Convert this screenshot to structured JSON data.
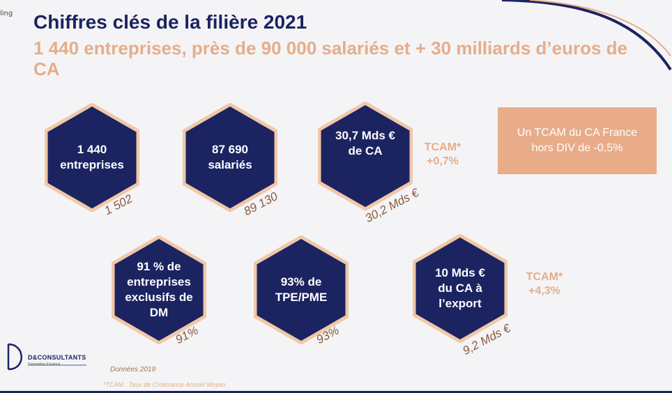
{
  "corner_tag": "ling",
  "slide": {
    "title": "Chiffres clés de la filière 2021",
    "subtitle": "1 440 entreprises, près de 90 000 salariés et + 30 milliards d’euros de CA"
  },
  "hexagons": [
    {
      "label": "1 440\nentreprises",
      "previous": "1 502"
    },
    {
      "label": "87 690\nsalariés",
      "previous": "89 130"
    },
    {
      "label": "30,7 Mds €\nde CA",
      "previous": "30,2 Mds €"
    },
    {
      "label": "91 % de\nentreprises\nexclusifs de\nDM",
      "previous": "91%"
    },
    {
      "label": "93% de\nTPE/PME",
      "previous": "93%"
    },
    {
      "label": "10 Mds €\ndu CA à\nl’export",
      "previous": "9,2 Mds €"
    }
  ],
  "tcam_ca": "TCAM*\n+0,7%",
  "tcam_export": "TCAM*\n+4,3%",
  "callout": "Un TCAM du CA France\nhors DIV de -0,5%",
  "logo": {
    "name": "D&CONSULTANTS",
    "tagline": "l’innovation d’avance"
  },
  "source": "Données 2019",
  "footnote": "*TCAM : Taux de Croissance Annuel Moyen",
  "colors": {
    "navy": "#1c2361",
    "peach": "#e6ad8a",
    "hex_border": "#f0c8a8",
    "brown": "#8a5a3c"
  }
}
